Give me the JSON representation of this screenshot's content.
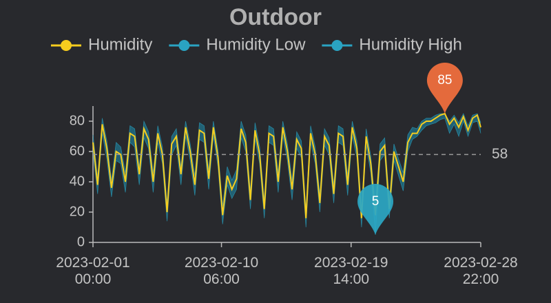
{
  "chart_data": {
    "type": "line",
    "title": "Outdoor",
    "x": [
      "2023-02-01 00:00",
      "2023-02-01 08:00",
      "2023-02-01 16:00",
      "2023-02-02 00:00",
      "2023-02-02 08:00",
      "2023-02-02 16:00",
      "2023-02-03 00:00",
      "2023-02-03 08:00",
      "2023-02-03 16:00",
      "2023-02-04 00:00",
      "2023-02-04 08:00",
      "2023-02-04 16:00",
      "2023-02-05 00:00",
      "2023-02-05 08:00",
      "2023-02-05 16:00",
      "2023-02-06 00:00",
      "2023-02-06 08:00",
      "2023-02-06 16:00",
      "2023-02-07 00:00",
      "2023-02-07 08:00",
      "2023-02-07 16:00",
      "2023-02-08 00:00",
      "2023-02-08 08:00",
      "2023-02-08 16:00",
      "2023-02-09 00:00",
      "2023-02-09 08:00",
      "2023-02-09 16:00",
      "2023-02-10 00:00",
      "2023-02-10 08:00",
      "2023-02-10 16:00",
      "2023-02-11 00:00",
      "2023-02-11 08:00",
      "2023-02-11 16:00",
      "2023-02-12 00:00",
      "2023-02-12 08:00",
      "2023-02-12 16:00",
      "2023-02-13 00:00",
      "2023-02-13 08:00",
      "2023-02-13 16:00",
      "2023-02-14 00:00",
      "2023-02-14 08:00",
      "2023-02-14 16:00",
      "2023-02-15 00:00",
      "2023-02-15 08:00",
      "2023-02-15 16:00",
      "2023-02-16 00:00",
      "2023-02-16 08:00",
      "2023-02-16 16:00",
      "2023-02-17 00:00",
      "2023-02-17 08:00",
      "2023-02-17 16:00",
      "2023-02-18 00:00",
      "2023-02-18 08:00",
      "2023-02-18 16:00",
      "2023-02-19 00:00",
      "2023-02-19 08:00",
      "2023-02-19 16:00",
      "2023-02-20 00:00",
      "2023-02-20 08:00",
      "2023-02-20 16:00",
      "2023-02-21 00:00",
      "2023-02-21 08:00",
      "2023-02-21 16:00",
      "2023-02-22 00:00",
      "2023-02-22 08:00",
      "2023-02-22 16:00",
      "2023-02-23 00:00",
      "2023-02-23 08:00",
      "2023-02-23 16:00",
      "2023-02-24 00:00",
      "2023-02-24 08:00",
      "2023-02-24 16:00",
      "2023-02-25 00:00",
      "2023-02-25 08:00",
      "2023-02-25 16:00",
      "2023-02-26 00:00",
      "2023-02-26 08:00",
      "2023-02-26 16:00",
      "2023-02-27 00:00",
      "2023-02-27 08:00",
      "2023-02-27 16:00",
      "2023-02-28 00:00",
      "2023-02-28 08:00",
      "2023-02-28 16:00",
      "2023-02-28 22:00"
    ],
    "series": [
      {
        "name": "Humidity",
        "color": "#f7cd1e",
        "values": [
          66,
          38,
          78,
          62,
          36,
          60,
          58,
          40,
          72,
          70,
          45,
          75,
          68,
          40,
          72,
          58,
          20,
          65,
          70,
          45,
          76,
          60,
          38,
          74,
          72,
          42,
          76,
          56,
          18,
          44,
          35,
          42,
          75,
          66,
          28,
          74,
          58,
          22,
          72,
          70,
          40,
          76,
          60,
          35,
          68,
          62,
          16,
          72,
          58,
          26,
          70,
          64,
          32,
          72,
          70,
          38,
          76,
          62,
          16,
          70,
          52,
          18,
          60,
          64,
          22,
          60,
          50,
          40,
          66,
          72,
          72,
          78,
          80,
          80,
          82,
          84,
          85,
          78,
          82,
          76,
          83,
          74,
          82,
          84,
          76
        ]
      },
      {
        "name": "Humidity Low",
        "color": "#2aa3c2",
        "values": [
          60,
          32,
          72,
          55,
          30,
          54,
          52,
          33,
          66,
          63,
          38,
          69,
          62,
          33,
          66,
          52,
          14,
          58,
          64,
          38,
          70,
          54,
          31,
          68,
          66,
          35,
          70,
          50,
          12,
          38,
          29,
          35,
          69,
          60,
          22,
          68,
          52,
          16,
          66,
          64,
          33,
          70,
          54,
          28,
          62,
          56,
          10,
          66,
          52,
          20,
          64,
          58,
          26,
          66,
          64,
          31,
          70,
          56,
          10,
          64,
          46,
          5,
          54,
          58,
          16,
          54,
          44,
          34,
          60,
          68,
          70,
          74,
          77,
          78,
          79,
          81,
          82,
          72,
          78,
          70,
          80,
          70,
          79,
          80,
          72
        ]
      },
      {
        "name": "Humidity High",
        "color": "#2aa3c2",
        "values": [
          71,
          43,
          82,
          67,
          41,
          66,
          63,
          46,
          77,
          75,
          50,
          80,
          73,
          46,
          77,
          63,
          26,
          70,
          75,
          50,
          80,
          65,
          44,
          79,
          77,
          48,
          80,
          61,
          24,
          50,
          41,
          48,
          80,
          71,
          34,
          79,
          63,
          28,
          77,
          75,
          46,
          80,
          65,
          41,
          73,
          67,
          22,
          77,
          63,
          32,
          75,
          69,
          38,
          77,
          75,
          44,
          80,
          67,
          22,
          75,
          57,
          24,
          65,
          69,
          28,
          65,
          55,
          46,
          71,
          76,
          75,
          80,
          82,
          82,
          84,
          85,
          85,
          80,
          84,
          79,
          85,
          77,
          84,
          85,
          79
        ]
      }
    ],
    "band_color": "#1f6f86",
    "mark_points": [
      {
        "x": "2023-02-26 08:00",
        "value": 85,
        "color": "#f4703e"
      },
      {
        "x": "2023-02-21 08:00",
        "value": 5,
        "color": "#2ba7c4"
      }
    ],
    "mark_line": {
      "value": 58,
      "color": "#9a9a9a"
    },
    "xlim": [
      "2023-02-01 00:00",
      "2023-02-28 22:00"
    ],
    "xticks": [
      "2023-02-01 00:00",
      "2023-02-10 06:00",
      "2023-02-19 14:00",
      "2023-02-28 22:00"
    ],
    "ylim": [
      0,
      90
    ],
    "yticks": [
      0,
      20,
      40,
      60,
      80
    ]
  }
}
